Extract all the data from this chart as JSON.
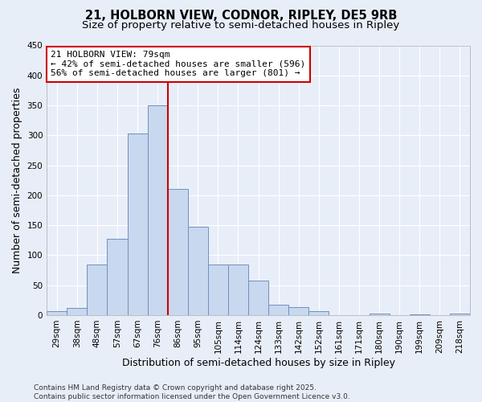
{
  "title_line1": "21, HOLBORN VIEW, CODNOR, RIPLEY, DE5 9RB",
  "title_line2": "Size of property relative to semi-detached houses in Ripley",
  "xlabel": "Distribution of semi-detached houses by size in Ripley",
  "ylabel": "Number of semi-detached properties",
  "footnote1": "Contains HM Land Registry data © Crown copyright and database right 2025.",
  "footnote2": "Contains public sector information licensed under the Open Government Licence v3.0.",
  "bar_labels": [
    "29sqm",
    "38sqm",
    "48sqm",
    "57sqm",
    "67sqm",
    "76sqm",
    "86sqm",
    "95sqm",
    "105sqm",
    "114sqm",
    "124sqm",
    "133sqm",
    "142sqm",
    "152sqm",
    "161sqm",
    "171sqm",
    "180sqm",
    "190sqm",
    "199sqm",
    "209sqm",
    "218sqm"
  ],
  "bar_values": [
    6,
    12,
    85,
    128,
    303,
    350,
    210,
    147,
    85,
    85,
    57,
    18,
    14,
    7,
    0,
    0,
    2,
    0,
    1,
    0,
    2
  ],
  "bar_color": "#c8d8ee",
  "bar_edge_color": "#7090c0",
  "property_line_index": 6,
  "annotation_line1": "21 HOLBORN VIEW: 79sqm",
  "annotation_line2": "← 42% of semi-detached houses are smaller (596)",
  "annotation_line3": "56% of semi-detached houses are larger (801) →",
  "annotation_box_facecolor": "#ffffff",
  "annotation_box_edgecolor": "#cc0000",
  "vline_color": "#cc0000",
  "ylim": [
    0,
    450
  ],
  "yticks": [
    0,
    50,
    100,
    150,
    200,
    250,
    300,
    350,
    400,
    450
  ],
  "background_color": "#e8eef8",
  "grid_color": "#ffffff",
  "title1_fontsize": 10.5,
  "title2_fontsize": 9.5,
  "axis_label_fontsize": 9,
  "tick_fontsize": 7.5,
  "annotation_fontsize": 8,
  "footnote_fontsize": 6.5
}
